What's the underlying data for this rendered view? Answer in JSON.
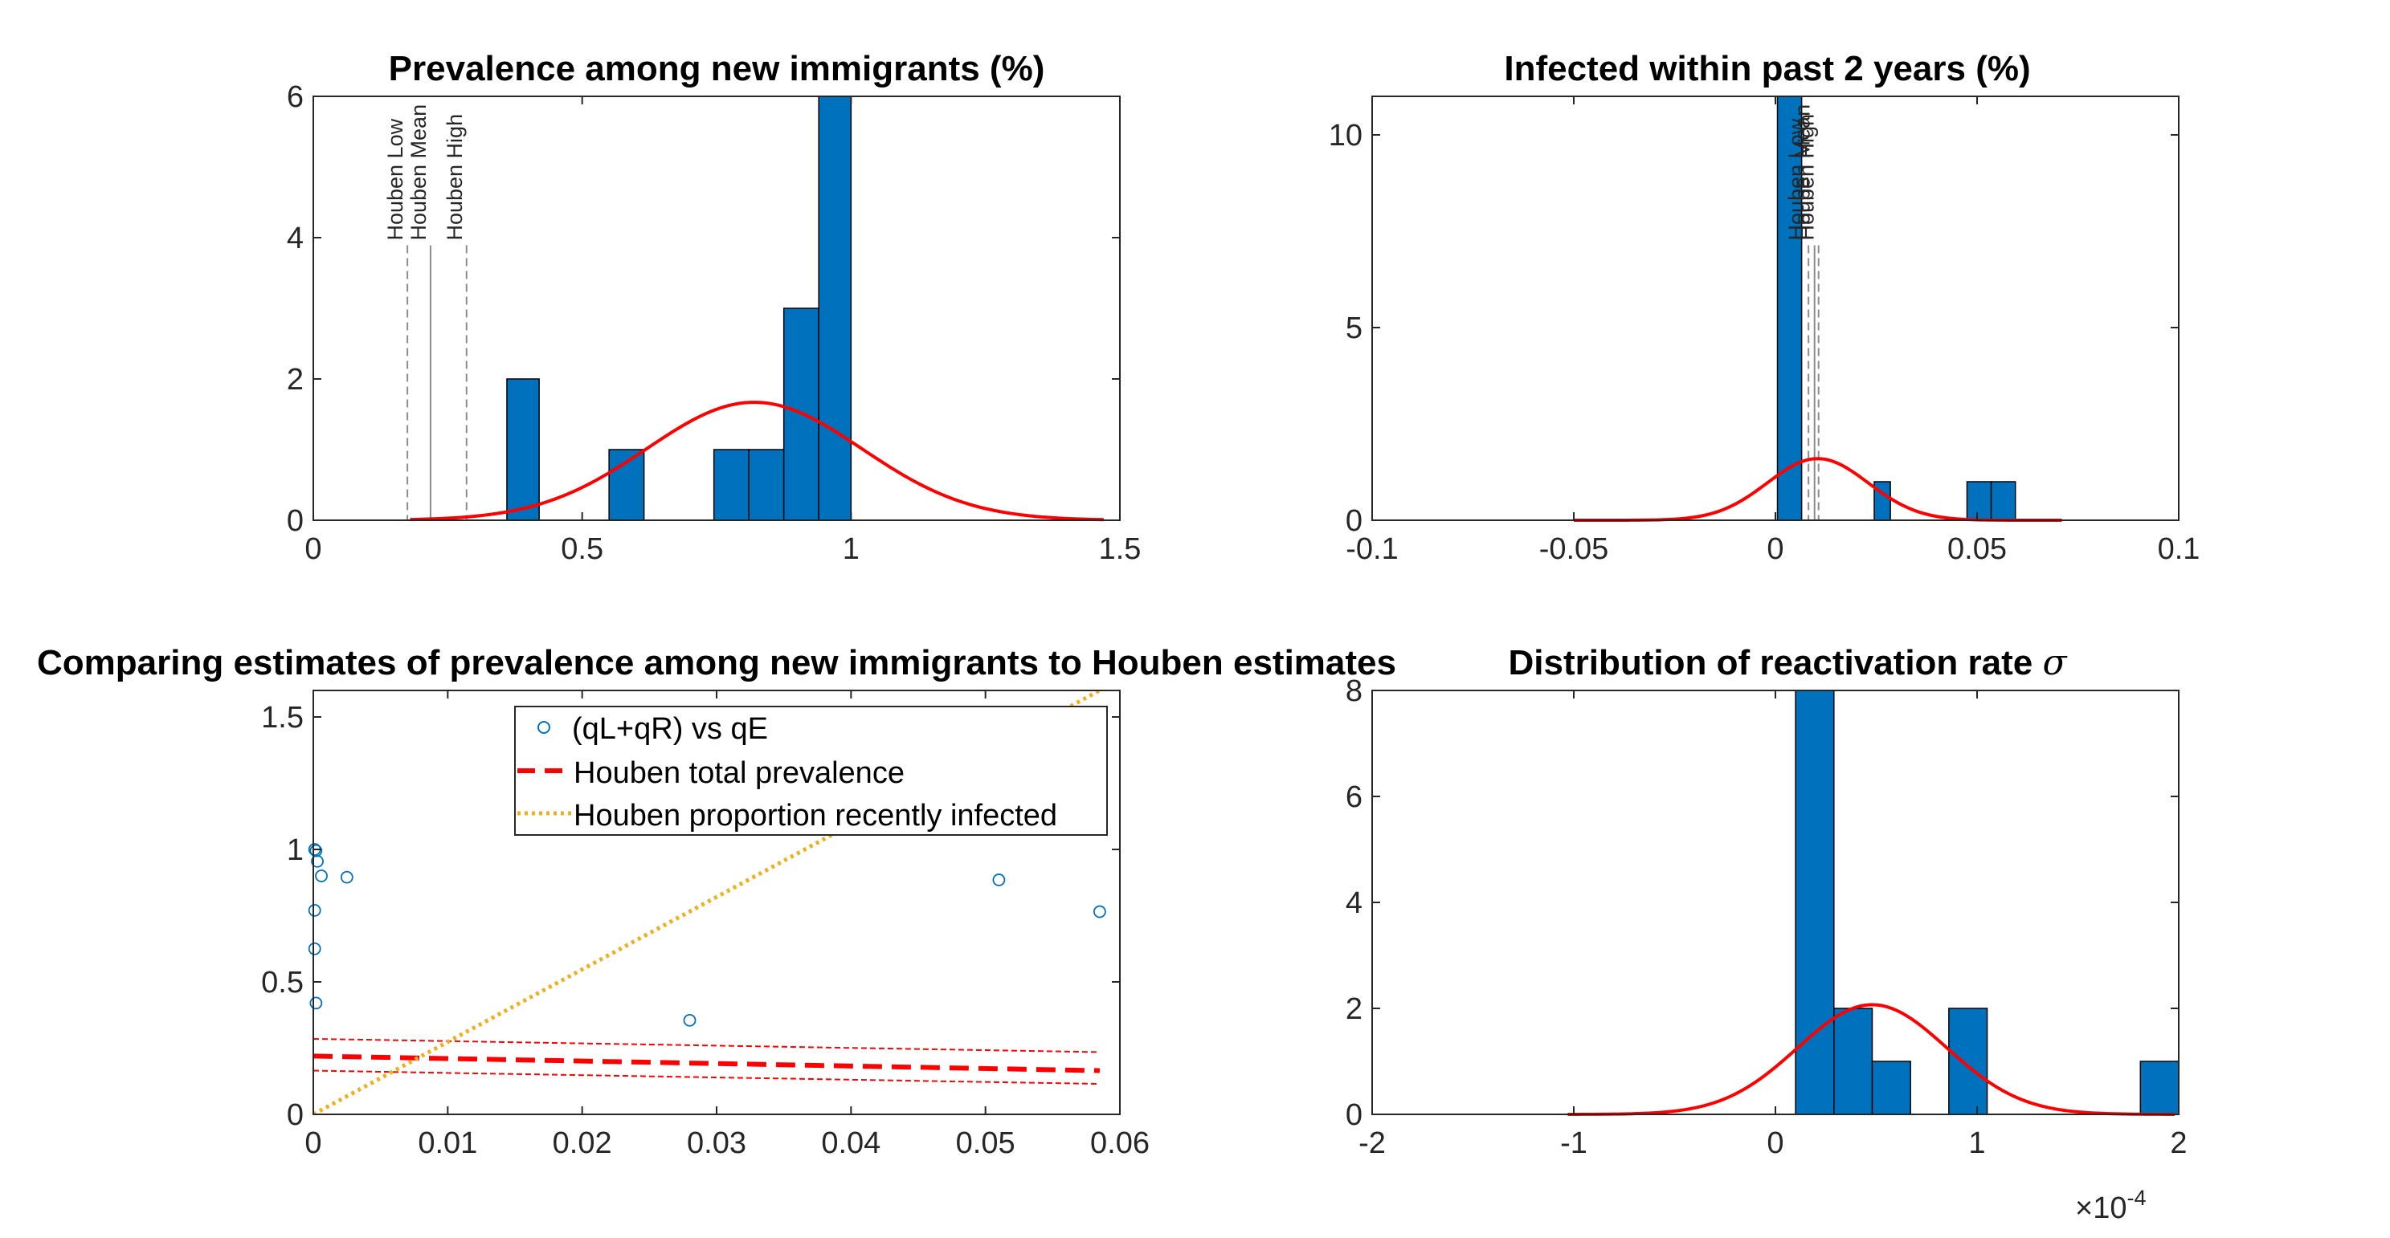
{
  "colors": {
    "bar": "#0072BD",
    "fit": "#FF0000",
    "scatter": "#0072BD",
    "prevalence_line": "#FF0000",
    "recent_line": "#EDB120",
    "axis": "#262626",
    "ref_line": "#8c8c8c"
  },
  "chart_data": [
    {
      "id": "top-left",
      "type": "bar",
      "title": "Prevalence among new immigrants (%)",
      "xlim": [
        0,
        1.5
      ],
      "ylim": [
        0,
        6
      ],
      "xticks": [
        0,
        0.5,
        1,
        1.5
      ],
      "xtick_labels": [
        "0",
        "0.5",
        "1",
        "1.5"
      ],
      "yticks": [
        0,
        2,
        4,
        6
      ],
      "ytick_labels": [
        "0",
        "2",
        "4",
        "6"
      ],
      "bins": [
        {
          "x0": 0.36,
          "x1": 0.42,
          "count": 2
        },
        {
          "x0": 0.55,
          "x1": 0.615,
          "count": 1
        },
        {
          "x0": 0.745,
          "x1": 0.81,
          "count": 1
        },
        {
          "x0": 0.81,
          "x1": 0.875,
          "count": 1
        },
        {
          "x0": 0.875,
          "x1": 0.94,
          "count": 3
        },
        {
          "x0": 0.94,
          "x1": 1.0,
          "count": 6
        }
      ],
      "fit": {
        "mean": 0.82,
        "sd": 0.2,
        "peak": 1.67,
        "xmin": 0.18,
        "xmax": 1.47
      },
      "ref_lines": [
        {
          "x": 0.175,
          "label": "Houben Low",
          "style": "dashed"
        },
        {
          "x": 0.218,
          "label": "Houben Mean",
          "style": "solid"
        },
        {
          "x": 0.285,
          "label": "Houben High",
          "style": "dashed"
        }
      ]
    },
    {
      "id": "top-right",
      "type": "bar",
      "title": "Infected within past 2 years (%)",
      "xlim": [
        -0.1,
        0.1
      ],
      "ylim": [
        0,
        11
      ],
      "xticks": [
        -0.1,
        -0.05,
        0,
        0.05,
        0.1
      ],
      "xtick_labels": [
        "-0.1",
        "-0.05",
        "0",
        "0.05",
        "0.1"
      ],
      "yticks": [
        0,
        5,
        10
      ],
      "ytick_labels": [
        "0",
        "5",
        "10"
      ],
      "bins": [
        {
          "x0": 0.0005,
          "x1": 0.0065,
          "count": 11
        },
        {
          "x0": 0.0245,
          "x1": 0.0285,
          "count": 1
        },
        {
          "x0": 0.0475,
          "x1": 0.0535,
          "count": 1
        },
        {
          "x0": 0.0535,
          "x1": 0.0595,
          "count": 1
        }
      ],
      "fit": {
        "mean": 0.0105,
        "sd": 0.0125,
        "peak": 1.6,
        "xmin": -0.05,
        "xmax": 0.071
      },
      "ref_lines": [
        {
          "x": 0.0082,
          "label": "Houben Low",
          "style": "dashed"
        },
        {
          "x": 0.0097,
          "label": "Houben Mean",
          "style": "solid"
        },
        {
          "x": 0.0107,
          "label": "Houben High",
          "style": "dashed"
        }
      ]
    },
    {
      "id": "bottom-left",
      "type": "scatter",
      "title": "Comparing estimates of prevalence among new immigrants to Houben estimates",
      "xlim": [
        0,
        0.06
      ],
      "ylim": [
        0,
        1.6
      ],
      "xticks": [
        0,
        0.01,
        0.02,
        0.03,
        0.04,
        0.05,
        0.06
      ],
      "xtick_labels": [
        "0",
        "0.01",
        "0.02",
        "0.03",
        "0.04",
        "0.05",
        "0.06"
      ],
      "yticks": [
        0,
        0.5,
        1,
        1.5
      ],
      "ytick_labels": [
        "0",
        "0.5",
        "1",
        "1.5"
      ],
      "points": [
        [
          0.0001,
          1.0
        ],
        [
          0.0002,
          0.995
        ],
        [
          0.0003,
          0.955
        ],
        [
          0.0006,
          0.9
        ],
        [
          0.0025,
          0.895
        ],
        [
          0.0001,
          0.77
        ],
        [
          0.0001,
          0.625
        ],
        [
          0.0002,
          0.42
        ],
        [
          0.028,
          0.355
        ],
        [
          0.051,
          0.885
        ],
        [
          0.0585,
          0.765
        ]
      ],
      "series": [
        {
          "name": "(qL+qR) vs qE",
          "kind": "scatter"
        },
        {
          "name": "Houben total prevalence",
          "kind": "dashed",
          "mean": [
            [
              0,
              0.22
            ],
            [
              0.0585,
              0.165
            ]
          ],
          "low": [
            [
              0,
              0.165
            ],
            [
              0.0585,
              0.115
            ]
          ],
          "high": [
            [
              0,
              0.285
            ],
            [
              0.0585,
              0.235
            ]
          ]
        },
        {
          "name": "Houben proportion recently infected",
          "kind": "dotted",
          "line": [
            [
              0,
              0
            ],
            [
              0.0585,
              1.6
            ]
          ]
        }
      ],
      "legend_position": "top-right"
    },
    {
      "id": "bottom-right",
      "type": "bar",
      "title_prefix": "Distribution of reactivation rate ",
      "title_symbol": "σ",
      "xlim": [
        -2,
        2
      ],
      "ylim": [
        0,
        8
      ],
      "xticks": [
        -2,
        -1,
        0,
        1,
        2
      ],
      "xtick_labels": [
        "-2",
        "-1",
        "0",
        "1",
        "2"
      ],
      "yticks": [
        0,
        2,
        4,
        6,
        8
      ],
      "ytick_labels": [
        "0",
        "2",
        "4",
        "6",
        "8"
      ],
      "x_exponent_base": "×10",
      "x_exponent_power": "-4",
      "bins": [
        {
          "x0": 0.1,
          "x1": 0.29,
          "count": 8
        },
        {
          "x0": 0.29,
          "x1": 0.48,
          "count": 2
        },
        {
          "x0": 0.48,
          "x1": 0.67,
          "count": 1
        },
        {
          "x0": 0.86,
          "x1": 1.05,
          "count": 2
        },
        {
          "x0": 1.81,
          "x1": 2.0,
          "count": 1
        }
      ],
      "fit": {
        "mean": 0.48,
        "sd": 0.37,
        "peak": 2.07,
        "xmin": -1.03,
        "xmax": 1.98
      }
    }
  ]
}
